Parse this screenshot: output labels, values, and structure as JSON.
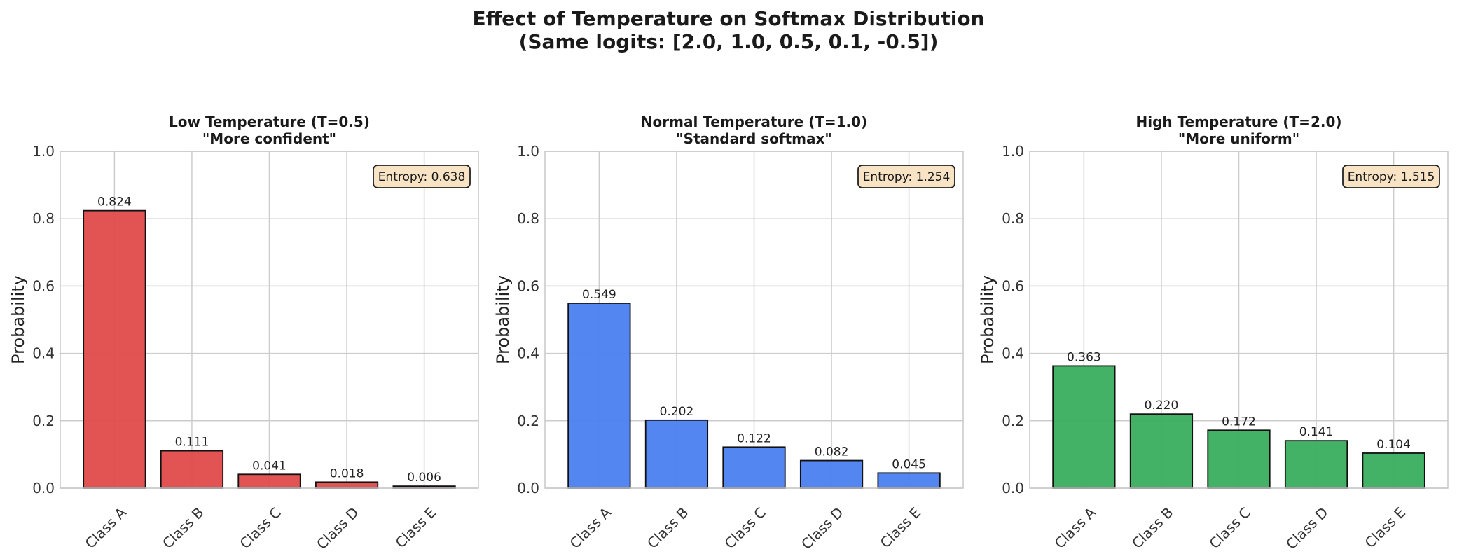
{
  "figure": {
    "title_line1": "Effect of Temperature on Softmax Distribution",
    "title_line2": "(Same logits: [2.0, 1.0, 0.5, 0.1, -0.5])"
  },
  "chart_data": [
    {
      "type": "bar",
      "title": "Low Temperature (T=0.5)",
      "subtitle": "\"More confident\"",
      "categories": [
        "Class A",
        "Class B",
        "Class C",
        "Class D",
        "Class E"
      ],
      "values": [
        0.824,
        0.111,
        0.041,
        0.018,
        0.006
      ],
      "value_labels": [
        "0.824",
        "0.111",
        "0.041",
        "0.018",
        "0.006"
      ],
      "xlabel": "",
      "ylabel": "Probability",
      "ylim": [
        0,
        1.0
      ],
      "yticks": [
        "0.0",
        "0.2",
        "0.4",
        "0.6",
        "0.8",
        "1.0"
      ],
      "grid": true,
      "color": "#e04a4a",
      "entropy_label": "Entropy: 0.638"
    },
    {
      "type": "bar",
      "title": "Normal Temperature (T=1.0)",
      "subtitle": "\"Standard softmax\"",
      "categories": [
        "Class A",
        "Class B",
        "Class C",
        "Class D",
        "Class E"
      ],
      "values": [
        0.549,
        0.202,
        0.122,
        0.082,
        0.045
      ],
      "value_labels": [
        "0.549",
        "0.202",
        "0.122",
        "0.082",
        "0.045"
      ],
      "xlabel": "",
      "ylabel": "Probability",
      "ylim": [
        0,
        1.0
      ],
      "yticks": [
        "0.0",
        "0.2",
        "0.4",
        "0.6",
        "0.8",
        "1.0"
      ],
      "grid": true,
      "color": "#4a7ff0",
      "entropy_label": "Entropy: 1.254"
    },
    {
      "type": "bar",
      "title": "High Temperature (T=2.0)",
      "subtitle": "\"More uniform\"",
      "categories": [
        "Class A",
        "Class B",
        "Class C",
        "Class D",
        "Class E"
      ],
      "values": [
        0.363,
        0.22,
        0.172,
        0.141,
        0.104
      ],
      "value_labels": [
        "0.363",
        "0.220",
        "0.172",
        "0.141",
        "0.104"
      ],
      "xlabel": "",
      "ylabel": "Probability",
      "ylim": [
        0,
        1.0
      ],
      "yticks": [
        "0.0",
        "0.2",
        "0.4",
        "0.6",
        "0.8",
        "1.0"
      ],
      "grid": true,
      "color": "#3aae5e",
      "entropy_label": "Entropy: 1.515"
    }
  ]
}
